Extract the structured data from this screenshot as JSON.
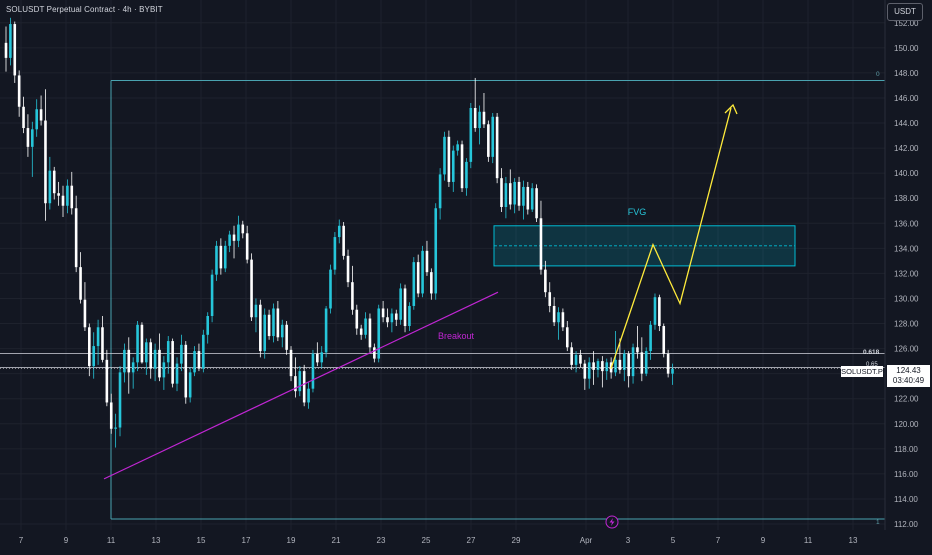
{
  "header": {
    "title": "SOLUSDT Perpetual Contract · 4h · BYBIT"
  },
  "currency_button": "USDT",
  "price_tag": {
    "symbol": "SOLUSDT.P",
    "price": "124.43",
    "countdown": "03:40:49"
  },
  "colors": {
    "bg": "#131722",
    "up": "#26c6da",
    "down": "#ffffff",
    "grid": "#1e222d",
    "trend": "#c026d3",
    "projection": "#ffeb3b",
    "fvg": "#00bcd4"
  },
  "annotations": {
    "fvg_label": "FVG",
    "breakout_label": "Breakout",
    "fib_top_label": "0",
    "fib_618_label": "0.618",
    "fib_65_label": "0.65",
    "fib_bottom_label": "1",
    "event_icon": "lightning-icon"
  },
  "chart_data": {
    "type": "candlestick",
    "title": "SOLUSDT Perpetual Contract · 4h · BYBIT",
    "ylim": [
      111.5,
      153
    ],
    "y_ticks": [
      112,
      114,
      116,
      118,
      120,
      122,
      124,
      126,
      128,
      130,
      132,
      134,
      136,
      138,
      140,
      142,
      144,
      146,
      148,
      150,
      152
    ],
    "y_tick_labels": [
      "112.00",
      "114.00",
      "116.00",
      "118.00",
      "120.00",
      "122.00",
      "124.00",
      "126.00",
      "128.00",
      "130.00",
      "132.00",
      "134.00",
      "136.00",
      "138.00",
      "140.00",
      "142.00",
      "144.00",
      "146.00",
      "148.00",
      "150.00",
      "152.00"
    ],
    "x_tick_labels": [
      "7",
      "9",
      "11",
      "13",
      "15",
      "17",
      "19",
      "21",
      "23",
      "25",
      "27",
      "29",
      "Apr",
      "3",
      "5",
      "7",
      "9",
      "11",
      "13"
    ],
    "grid": true,
    "candles_ohlc": [
      [
        150.4,
        151.7,
        148.1,
        149.2
      ],
      [
        149.2,
        152.4,
        148.6,
        151.9
      ],
      [
        151.9,
        152.1,
        147.2,
        147.8
      ],
      [
        147.8,
        148.2,
        144.5,
        145.3
      ],
      [
        145.3,
        146.1,
        143.2,
        143.6
      ],
      [
        143.6,
        144.7,
        141.3,
        142.1
      ],
      [
        142.1,
        144.1,
        139.7,
        143.5
      ],
      [
        143.5,
        145.9,
        142.9,
        145.1
      ],
      [
        145.1,
        146.2,
        143.8,
        144.2
      ],
      [
        144.2,
        146.7,
        136.2,
        137.6
      ],
      [
        137.6,
        141.3,
        137.1,
        140.2
      ],
      [
        140.2,
        140.5,
        137.9,
        138.4
      ],
      [
        138.4,
        139.3,
        137.4,
        138.2
      ],
      [
        138.2,
        139.0,
        136.5,
        137.4
      ],
      [
        137.4,
        139.5,
        136.8,
        139.0
      ],
      [
        139.0,
        140.1,
        136.7,
        137.2
      ],
      [
        137.2,
        138.2,
        132.1,
        132.5
      ],
      [
        132.5,
        133.7,
        129.6,
        129.9
      ],
      [
        129.9,
        131.3,
        127.4,
        127.7
      ],
      [
        127.7,
        128.0,
        123.8,
        124.6
      ],
      [
        124.6,
        127.3,
        123.6,
        126.2
      ],
      [
        126.2,
        128.3,
        124.7,
        127.7
      ],
      [
        127.7,
        128.6,
        124.9,
        125.1
      ],
      [
        125.1,
        125.9,
        121.4,
        121.7
      ],
      [
        121.7,
        122.4,
        119.2,
        119.6
      ],
      [
        119.6,
        120.8,
        118.1,
        119.7
      ],
      [
        119.7,
        124.6,
        119.0,
        124.1
      ],
      [
        124.1,
        126.4,
        123.3,
        125.9
      ],
      [
        125.9,
        126.9,
        122.4,
        124.1
      ],
      [
        124.1,
        125.3,
        122.8,
        124.9
      ],
      [
        124.9,
        128.2,
        124.2,
        127.9
      ],
      [
        127.9,
        128.1,
        124.8,
        124.9
      ],
      [
        124.9,
        126.8,
        123.9,
        126.5
      ],
      [
        126.5,
        126.8,
        123.6,
        124.4
      ],
      [
        124.4,
        126.4,
        123.4,
        125.9
      ],
      [
        125.9,
        127.2,
        123.4,
        123.7
      ],
      [
        123.7,
        125.4,
        122.7,
        124.9
      ],
      [
        124.9,
        127.0,
        124.0,
        126.6
      ],
      [
        126.6,
        126.8,
        122.9,
        123.2
      ],
      [
        123.2,
        125.3,
        122.6,
        124.8
      ],
      [
        124.8,
        127.1,
        124.2,
        126.3
      ],
      [
        126.3,
        126.6,
        121.6,
        122.1
      ],
      [
        122.1,
        124.5,
        121.7,
        124.1
      ],
      [
        124.1,
        126.2,
        123.8,
        125.8
      ],
      [
        125.8,
        126.4,
        124.2,
        124.4
      ],
      [
        124.4,
        127.5,
        124.1,
        127.1
      ],
      [
        127.1,
        128.9,
        126.4,
        128.6
      ],
      [
        128.6,
        132.3,
        128.1,
        131.9
      ],
      [
        131.9,
        134.6,
        131.4,
        134.2
      ],
      [
        134.2,
        134.8,
        131.9,
        132.4
      ],
      [
        132.4,
        134.6,
        132.1,
        134.2
      ],
      [
        134.2,
        135.4,
        133.7,
        135.1
      ],
      [
        135.1,
        135.8,
        133.2,
        134.6
      ],
      [
        134.6,
        136.6,
        134.1,
        135.9
      ],
      [
        135.9,
        136.2,
        134.8,
        135.2
      ],
      [
        135.2,
        135.8,
        132.8,
        133.1
      ],
      [
        133.1,
        133.6,
        128.2,
        128.5
      ],
      [
        128.5,
        130.0,
        127.3,
        129.5
      ],
      [
        129.5,
        129.9,
        125.3,
        125.8
      ],
      [
        125.8,
        129.2,
        125.2,
        128.7
      ],
      [
        128.7,
        129.1,
        126.7,
        127.0
      ],
      [
        127.0,
        129.6,
        126.5,
        129.2
      ],
      [
        129.2,
        129.8,
        126.6,
        126.9
      ],
      [
        126.9,
        128.3,
        126.1,
        127.9
      ],
      [
        127.9,
        128.2,
        125.5,
        125.9
      ],
      [
        125.9,
        126.2,
        123.4,
        123.8
      ],
      [
        123.8,
        125.3,
        122.1,
        122.6
      ],
      [
        122.6,
        124.6,
        122.2,
        124.2
      ],
      [
        124.2,
        124.7,
        121.4,
        121.7
      ],
      [
        121.7,
        123.3,
        121.2,
        122.8
      ],
      [
        122.8,
        125.9,
        122.5,
        125.6
      ],
      [
        125.6,
        126.5,
        124.6,
        124.9
      ],
      [
        124.9,
        126.2,
        124.4,
        125.7
      ],
      [
        125.7,
        129.4,
        125.3,
        129.2
      ],
      [
        129.2,
        132.7,
        128.8,
        132.3
      ],
      [
        132.3,
        135.3,
        131.9,
        134.9
      ],
      [
        134.9,
        136.3,
        134.4,
        135.8
      ],
      [
        135.8,
        136.1,
        133.1,
        133.4
      ],
      [
        133.4,
        133.9,
        130.9,
        131.3
      ],
      [
        131.3,
        132.6,
        128.7,
        129.1
      ],
      [
        129.1,
        129.5,
        127.1,
        127.6
      ],
      [
        127.6,
        127.9,
        126.7,
        127.1
      ],
      [
        127.1,
        128.9,
        126.8,
        128.4
      ],
      [
        128.4,
        128.8,
        125.7,
        126.1
      ],
      [
        126.1,
        126.4,
        124.9,
        125.2
      ],
      [
        125.2,
        129.5,
        124.9,
        129.2
      ],
      [
        129.2,
        129.8,
        128.1,
        128.5
      ],
      [
        128.5,
        129.2,
        127.7,
        128.1
      ],
      [
        128.1,
        129.2,
        127.3,
        128.8
      ],
      [
        128.8,
        129.1,
        127.8,
        128.3
      ],
      [
        128.3,
        131.2,
        127.9,
        130.8
      ],
      [
        130.8,
        131.1,
        127.3,
        127.8
      ],
      [
        127.8,
        129.7,
        127.4,
        129.4
      ],
      [
        129.4,
        133.3,
        129.1,
        132.9
      ],
      [
        132.9,
        133.5,
        130.1,
        130.4
      ],
      [
        130.4,
        134.2,
        130.1,
        133.8
      ],
      [
        133.8,
        134.6,
        131.8,
        132.1
      ],
      [
        132.1,
        132.4,
        129.9,
        130.4
      ],
      [
        130.4,
        137.6,
        129.9,
        137.2
      ],
      [
        137.2,
        140.4,
        136.3,
        139.9
      ],
      [
        139.9,
        143.3,
        139.4,
        142.9
      ],
      [
        142.9,
        143.4,
        138.9,
        139.3
      ],
      [
        139.3,
        142.2,
        138.5,
        141.8
      ],
      [
        141.8,
        142.6,
        141.4,
        142.3
      ],
      [
        142.3,
        142.6,
        138.5,
        138.8
      ],
      [
        138.8,
        141.2,
        138.2,
        140.9
      ],
      [
        140.9,
        145.6,
        140.4,
        145.2
      ],
      [
        145.2,
        147.6,
        143.3,
        143.6
      ],
      [
        143.6,
        145.4,
        142.3,
        144.9
      ],
      [
        144.9,
        146.4,
        143.6,
        143.9
      ],
      [
        143.9,
        144.2,
        140.9,
        141.3
      ],
      [
        141.3,
        144.8,
        140.8,
        144.5
      ],
      [
        144.5,
        144.8,
        139.2,
        139.6
      ],
      [
        139.6,
        140.4,
        136.9,
        137.3
      ],
      [
        137.3,
        139.7,
        136.4,
        139.2
      ],
      [
        139.2,
        140.3,
        137.1,
        137.5
      ],
      [
        137.5,
        139.6,
        136.8,
        139.3
      ],
      [
        139.3,
        139.7,
        137.0,
        137.4
      ],
      [
        137.4,
        139.4,
        136.3,
        138.9
      ],
      [
        138.9,
        139.3,
        136.7,
        137.1
      ],
      [
        137.1,
        139.2,
        136.9,
        138.8
      ],
      [
        138.8,
        139.1,
        136.1,
        136.4
      ],
      [
        136.4,
        137.8,
        131.9,
        132.3
      ],
      [
        132.3,
        133.0,
        130.1,
        130.5
      ],
      [
        130.5,
        131.3,
        128.9,
        129.4
      ],
      [
        129.4,
        130.1,
        127.8,
        128.1
      ],
      [
        128.1,
        129.3,
        126.7,
        128.9
      ],
      [
        128.9,
        129.2,
        127.4,
        127.7
      ],
      [
        127.7,
        128.2,
        125.8,
        126.1
      ],
      [
        126.1,
        126.5,
        124.3,
        124.7
      ],
      [
        124.7,
        125.8,
        124.1,
        125.5
      ],
      [
        125.5,
        125.9,
        124.5,
        124.8
      ],
      [
        124.8,
        125.1,
        122.7,
        123.6
      ],
      [
        123.6,
        125.3,
        122.8,
        124.9
      ],
      [
        124.9,
        125.8,
        123.1,
        124.3
      ],
      [
        124.3,
        125.2,
        123.7,
        125.0
      ],
      [
        125.0,
        125.4,
        122.9,
        124.2
      ],
      [
        124.2,
        125.2,
        123.5,
        124.9
      ],
      [
        124.9,
        125.3,
        123.6,
        124.1
      ],
      [
        124.1,
        127.4,
        123.8,
        125.1
      ],
      [
        125.1,
        126.8,
        124.0,
        124.3
      ],
      [
        124.3,
        125.9,
        123.4,
        125.6
      ],
      [
        125.6,
        125.8,
        122.9,
        123.8
      ],
      [
        123.8,
        126.4,
        123.2,
        126.1
      ],
      [
        126.1,
        127.8,
        125.2,
        125.7
      ],
      [
        125.7,
        126.9,
        123.4,
        124.0
      ],
      [
        124.0,
        126.1,
        123.8,
        125.8
      ],
      [
        125.8,
        128.2,
        125.1,
        127.9
      ],
      [
        127.9,
        130.4,
        127.5,
        130.1
      ],
      [
        130.1,
        130.3,
        127.4,
        127.8
      ],
      [
        127.8,
        128.0,
        125.3,
        125.6
      ],
      [
        125.6,
        125.9,
        123.7,
        124.0
      ],
      [
        124.0,
        124.8,
        123.1,
        124.4
      ]
    ],
    "trend_line": {
      "from": [
        "11",
        115.6
      ],
      "to": [
        "28",
        130.5
      ],
      "label": "Breakout"
    },
    "fvg_zone": {
      "top": 135.8,
      "bottom": 132.6,
      "mid": 134.2,
      "label": "FVG"
    },
    "fib_levels": [
      {
        "label": "0",
        "value": 147.4
      },
      {
        "label": "0.618",
        "value": 125.6
      },
      {
        "label": "0.65",
        "value": 124.5
      },
      {
        "label": "1",
        "value": 112.4
      }
    ],
    "projection_path": [
      124.4,
      134.3,
      129.6,
      145.2
    ],
    "last_price": 124.43
  }
}
